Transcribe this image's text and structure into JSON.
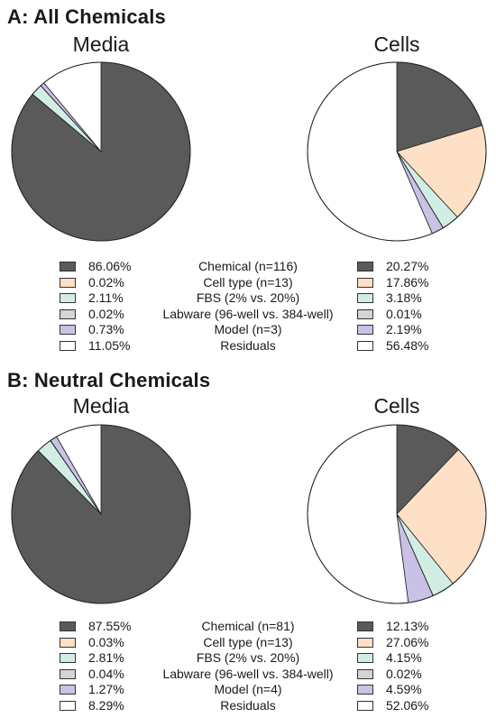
{
  "colors": {
    "chemical": "#5a5a5a",
    "cell_type": "#fde0c5",
    "fbs": "#d2ede3",
    "labware": "#d4d4d4",
    "model": "#c9c2e6",
    "residuals": "#ffffff"
  },
  "chart_data": [
    {
      "type": "pie",
      "title": "A: All Chemicals",
      "factors": [
        {
          "key": "chemical",
          "label": "Chemical (n=116)"
        },
        {
          "key": "cell_type",
          "label": "Cell type (n=13)"
        },
        {
          "key": "fbs",
          "label": "FBS (2% vs. 20%)"
        },
        {
          "key": "labware",
          "label": "Labware (96-well vs. 384-well)"
        },
        {
          "key": "model",
          "label": "Model (n=3)"
        },
        {
          "key": "residuals",
          "label": "Residuals"
        }
      ],
      "pies": [
        {
          "title": "Media",
          "values": [
            86.06,
            0.02,
            2.11,
            0.02,
            0.73,
            11.05
          ],
          "labels": [
            "86.06%",
            "0.02%",
            "2.11%",
            "0.02%",
            "0.73%",
            "11.05%"
          ]
        },
        {
          "title": "Cells",
          "values": [
            20.27,
            17.86,
            3.18,
            0.01,
            2.19,
            56.48
          ],
          "labels": [
            "20.27%",
            "17.86%",
            "3.18%",
            "0.01%",
            "2.19%",
            "56.48%"
          ]
        }
      ]
    },
    {
      "type": "pie",
      "title": "B: Neutral Chemicals",
      "factors": [
        {
          "key": "chemical",
          "label": "Chemical (n=81)"
        },
        {
          "key": "cell_type",
          "label": "Cell type (n=13)"
        },
        {
          "key": "fbs",
          "label": "FBS (2% vs. 20%)"
        },
        {
          "key": "labware",
          "label": "Labware (96-well vs. 384-well)"
        },
        {
          "key": "model",
          "label": "Model (n=4)"
        },
        {
          "key": "residuals",
          "label": "Residuals"
        }
      ],
      "pies": [
        {
          "title": "Media",
          "values": [
            87.55,
            0.03,
            2.81,
            0.04,
            1.27,
            8.29
          ],
          "labels": [
            "87.55%",
            "0.03%",
            "2.81%",
            "0.04%",
            "1.27%",
            "8.29%"
          ]
        },
        {
          "title": "Cells",
          "values": [
            12.13,
            27.06,
            4.15,
            0.02,
            4.59,
            52.06
          ],
          "labels": [
            "12.13%",
            "27.06%",
            "4.15%",
            "0.02%",
            "4.59%",
            "52.06%"
          ]
        }
      ]
    }
  ]
}
